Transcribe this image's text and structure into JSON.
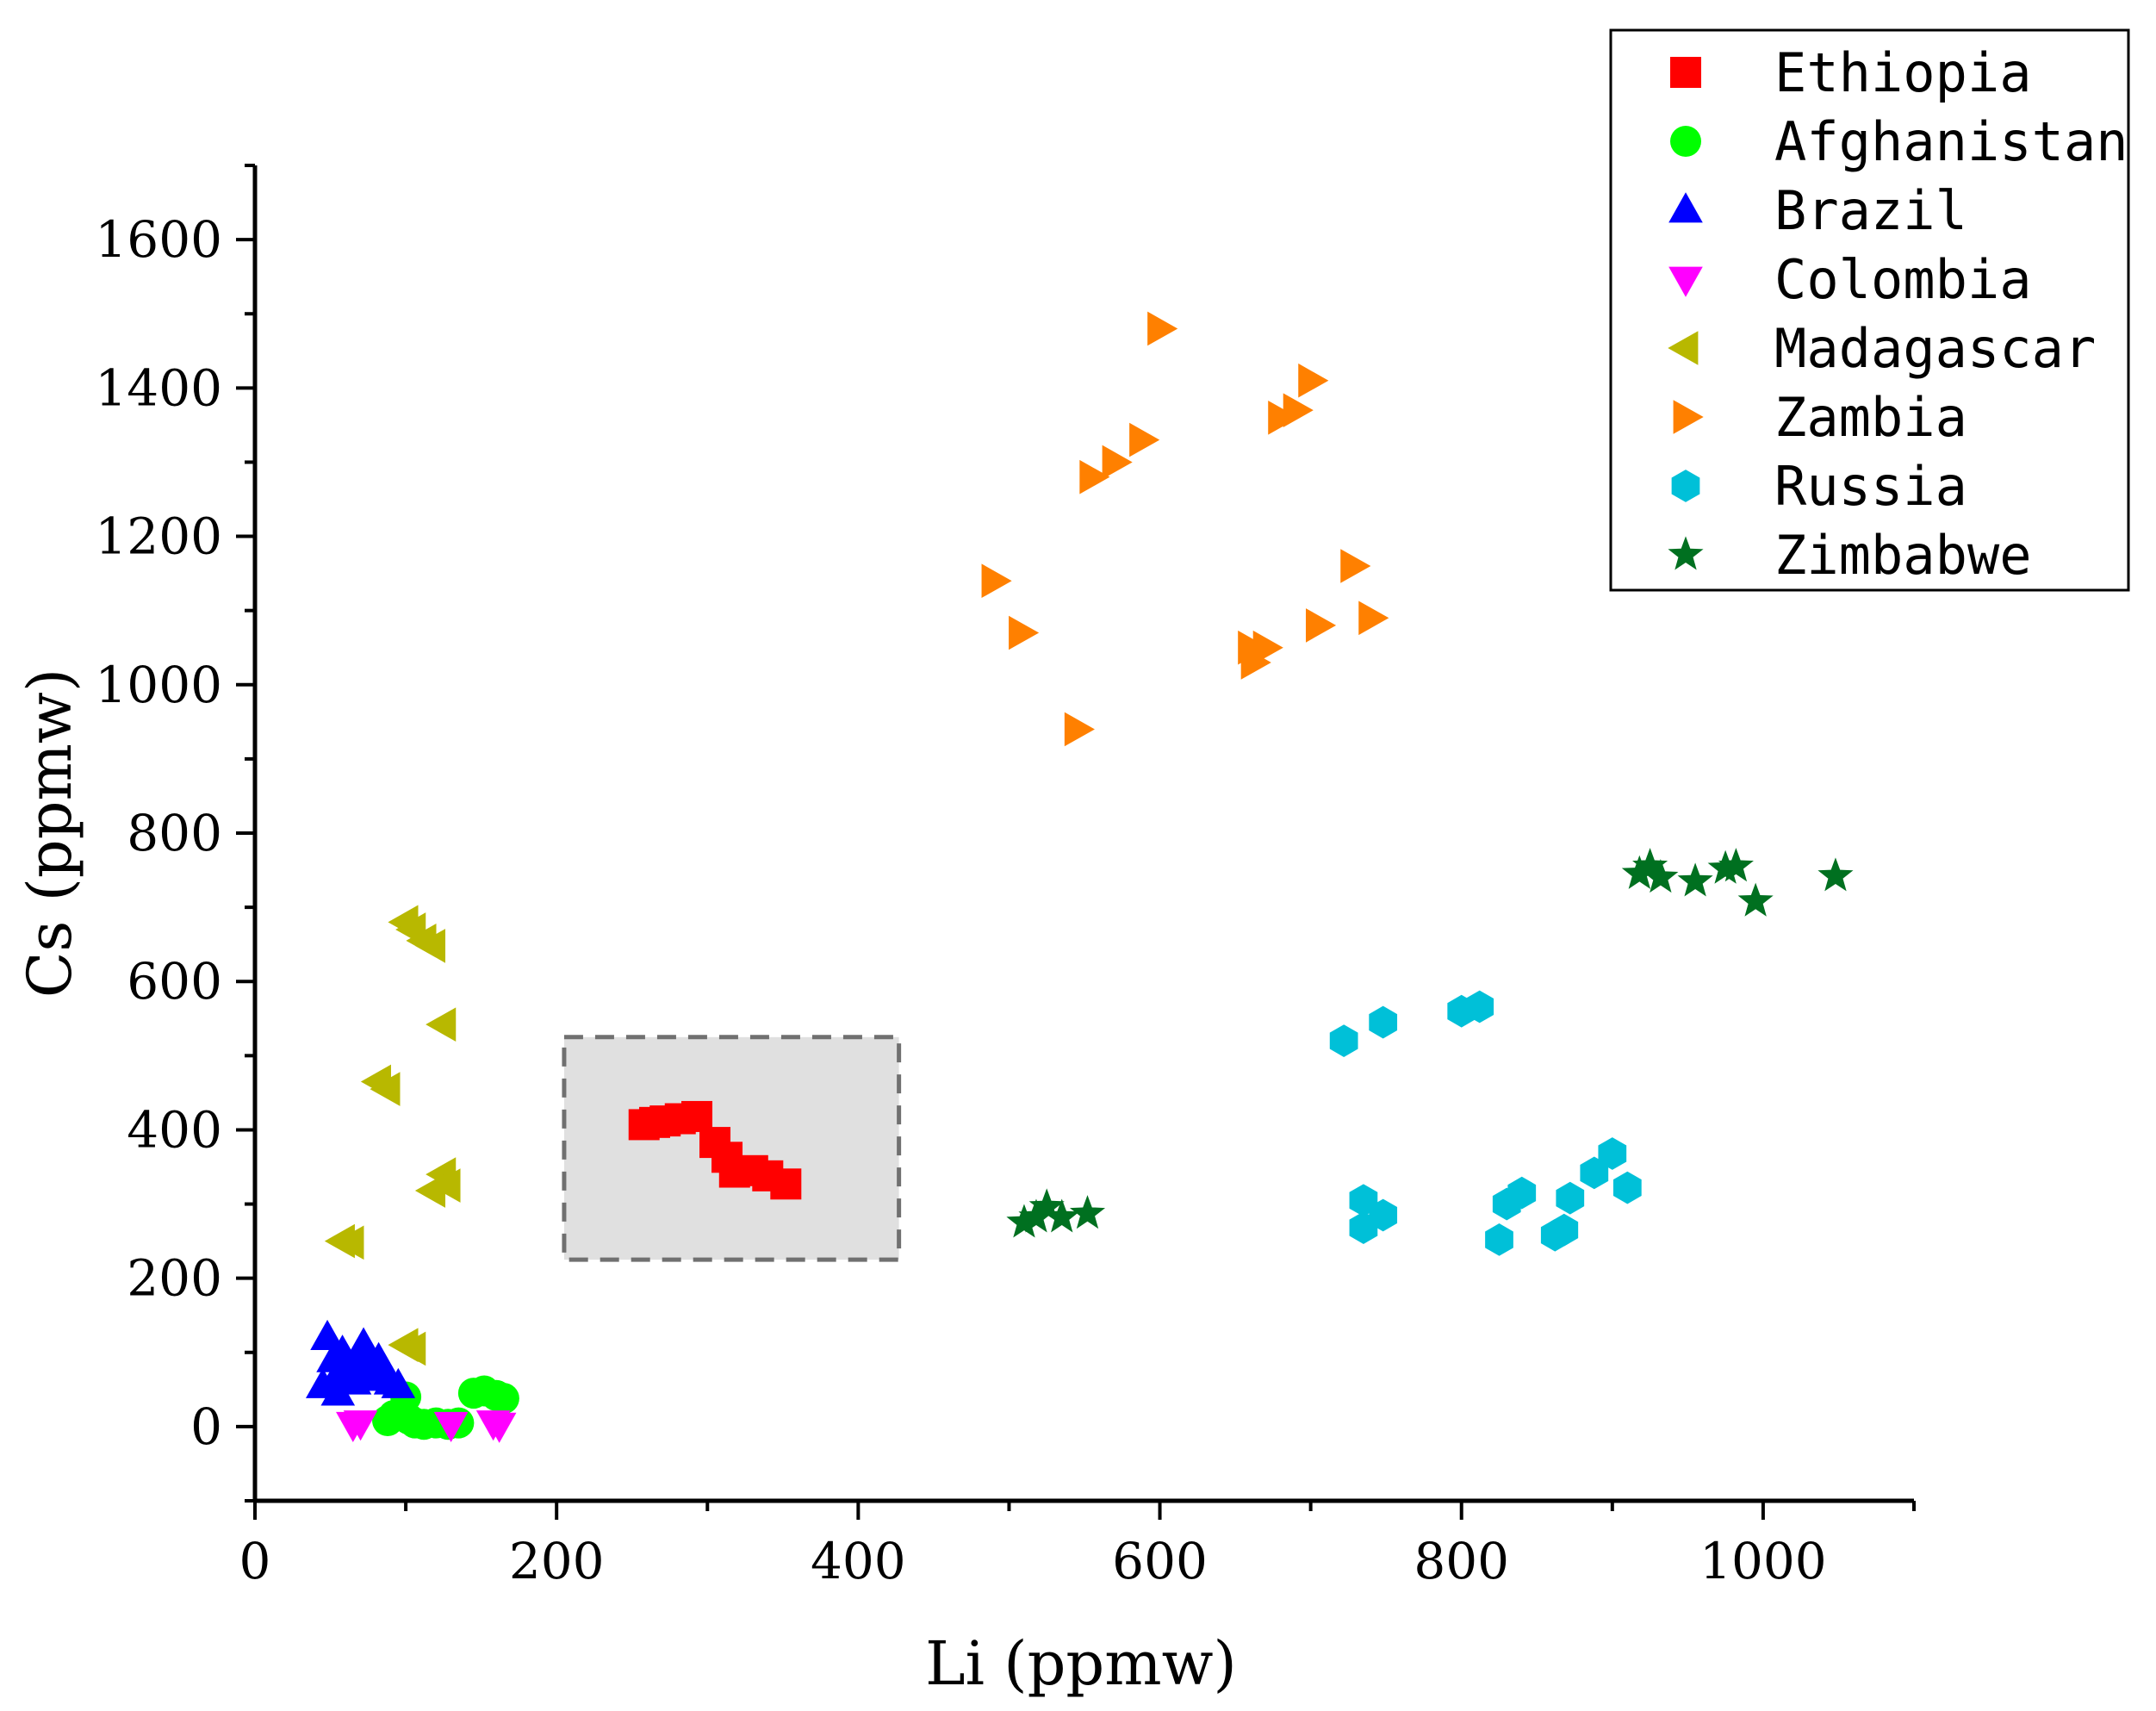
{
  "chart_data": {
    "type": "scatter",
    "title": "",
    "xlabel": "Li (ppmw)",
    "ylabel": "Cs (ppmw)",
    "xlim": [
      0,
      1100
    ],
    "ylim": [
      -100,
      1700
    ],
    "x_ticks": [
      0,
      200,
      400,
      600,
      800,
      1000
    ],
    "y_ticks": [
      0,
      200,
      400,
      600,
      800,
      1000,
      1200,
      1400,
      1600
    ],
    "legend_position": "top-right",
    "highlight_region": {
      "x": [
        205,
        427
      ],
      "y": [
        225,
        525
      ],
      "style": "dashed-gray"
    },
    "series": [
      {
        "name": "Ethiopia",
        "marker": "square",
        "color": "#ff0000",
        "points": [
          [
            258,
            407
          ],
          [
            265,
            410
          ],
          [
            272,
            412
          ],
          [
            282,
            415
          ],
          [
            293,
            418
          ],
          [
            305,
            383
          ],
          [
            313,
            363
          ],
          [
            318,
            343
          ],
          [
            330,
            345
          ],
          [
            340,
            338
          ],
          [
            352,
            327
          ]
        ]
      },
      {
        "name": "Afghanistan",
        "marker": "circle",
        "color": "#00ff00",
        "points": [
          [
            88,
            8
          ],
          [
            92,
            15
          ],
          [
            98,
            20
          ],
          [
            102,
            10
          ],
          [
            106,
            5
          ],
          [
            112,
            3
          ],
          [
            120,
            5
          ],
          [
            128,
            3
          ],
          [
            135,
            5
          ],
          [
            145,
            45
          ],
          [
            152,
            48
          ],
          [
            160,
            42
          ],
          [
            165,
            38
          ],
          [
            100,
            40
          ]
        ]
      },
      {
        "name": "Brazil",
        "marker": "triangle-up",
        "color": "#0000ff",
        "points": [
          [
            45,
            55
          ],
          [
            48,
            120
          ],
          [
            52,
            90
          ],
          [
            55,
            70
          ],
          [
            58,
            100
          ],
          [
            62,
            85
          ],
          [
            66,
            60
          ],
          [
            70,
            95
          ],
          [
            72,
            110
          ],
          [
            75,
            80
          ],
          [
            78,
            65
          ],
          [
            82,
            90
          ],
          [
            86,
            75
          ],
          [
            90,
            60
          ],
          [
            95,
            55
          ],
          [
            55,
            45
          ]
        ]
      },
      {
        "name": "Colombia",
        "marker": "triangle-down",
        "color": "#ff00ff",
        "points": [
          [
            65,
            3
          ],
          [
            70,
            5
          ],
          [
            130,
            3
          ],
          [
            158,
            5
          ],
          [
            162,
            2
          ]
        ]
      },
      {
        "name": "Madagascar",
        "marker": "triangle-left",
        "color": "#b8b800",
        "points": [
          [
            100,
            680
          ],
          [
            105,
            670
          ],
          [
            112,
            655
          ],
          [
            118,
            648
          ],
          [
            125,
            542
          ],
          [
            82,
            465
          ],
          [
            88,
            455
          ],
          [
            125,
            340
          ],
          [
            118,
            318
          ],
          [
            128,
            325
          ],
          [
            58,
            250
          ],
          [
            64,
            248
          ],
          [
            100,
            110
          ],
          [
            105,
            105
          ]
        ]
      },
      {
        "name": "Zambia",
        "marker": "triangle-right",
        "color": "#ff8000",
        "points": [
          [
            600,
            1480
          ],
          [
            700,
            1410
          ],
          [
            680,
            1360
          ],
          [
            690,
            1370
          ],
          [
            588,
            1330
          ],
          [
            570,
            1300
          ],
          [
            555,
            1280
          ],
          [
            728,
            1160
          ],
          [
            490,
            1140
          ],
          [
            508,
            1070
          ],
          [
            740,
            1090
          ],
          [
            705,
            1080
          ],
          [
            660,
            1050
          ],
          [
            670,
            1050
          ],
          [
            662,
            1030
          ],
          [
            545,
            940
          ]
        ]
      },
      {
        "name": "Russia",
        "marker": "hexagon",
        "color": "#00c0d8",
        "points": [
          [
            722,
            520
          ],
          [
            748,
            545
          ],
          [
            800,
            560
          ],
          [
            812,
            566
          ],
          [
            735,
            305
          ],
          [
            748,
            285
          ],
          [
            735,
            268
          ],
          [
            830,
            300
          ],
          [
            840,
            315
          ],
          [
            872,
            308
          ],
          [
            888,
            342
          ],
          [
            900,
            368
          ],
          [
            910,
            322
          ],
          [
            825,
            252
          ],
          [
            862,
            258
          ],
          [
            868,
            265
          ]
        ]
      },
      {
        "name": "Zimbabwe",
        "marker": "star",
        "color": "#007020",
        "points": [
          [
            918,
            745
          ],
          [
            925,
            755
          ],
          [
            932,
            740
          ],
          [
            955,
            735
          ],
          [
            975,
            752
          ],
          [
            982,
            755
          ],
          [
            995,
            708
          ],
          [
            1048,
            742
          ],
          [
            510,
            275
          ],
          [
            518,
            282
          ],
          [
            525,
            296
          ],
          [
            535,
            282
          ],
          [
            552,
            287
          ]
        ]
      }
    ]
  }
}
